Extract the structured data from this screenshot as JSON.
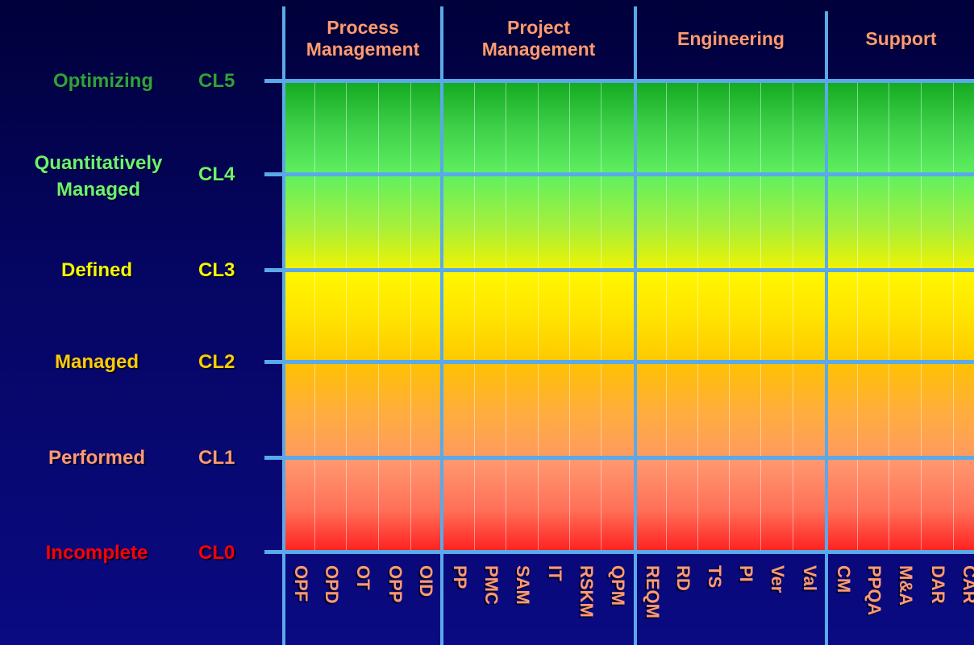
{
  "categories": [
    {
      "name": "Process Management",
      "line1": "Process",
      "line2": "Management"
    },
    {
      "name": "Project Management",
      "line1": "Project",
      "line2": "Management"
    },
    {
      "name": "Engineering",
      "line1": "Engineering",
      "line2": ""
    },
    {
      "name": "Support",
      "line1": "Support",
      "line2": ""
    }
  ],
  "levels": [
    {
      "code": "CL5",
      "name_line1": "Optimizing",
      "name_line2": "",
      "color": "#2fa33a"
    },
    {
      "code": "CL4",
      "name_line1": "Quantitatively",
      "name_line2": "Managed",
      "color": "#6cf26c"
    },
    {
      "code": "CL3",
      "name_line1": "Defined",
      "name_line2": "",
      "color": "#f5f500"
    },
    {
      "code": "CL2",
      "name_line1": "Managed",
      "name_line2": "",
      "color": "#ffcc00"
    },
    {
      "code": "CL1",
      "name_line1": "Performed",
      "name_line2": "",
      "color": "#ff9a70"
    },
    {
      "code": "CL0",
      "name_line1": "Incomplete",
      "name_line2": "",
      "color": "#ff0000"
    }
  ],
  "process_areas": [
    "OPF",
    "OPD",
    "OT",
    "OPP",
    "OID",
    "PP",
    "PMC",
    "SAM",
    "IT",
    "RSKM",
    "QPM",
    "REQM",
    "RD",
    "TS",
    "PI",
    "Ver",
    "Val",
    "CM",
    "PPQA",
    "M&A",
    "DAR",
    "CAR"
  ],
  "colors": {
    "background": "#05055f",
    "grid_line": "#5aa9e8",
    "header_text": "#ff9a70"
  }
}
